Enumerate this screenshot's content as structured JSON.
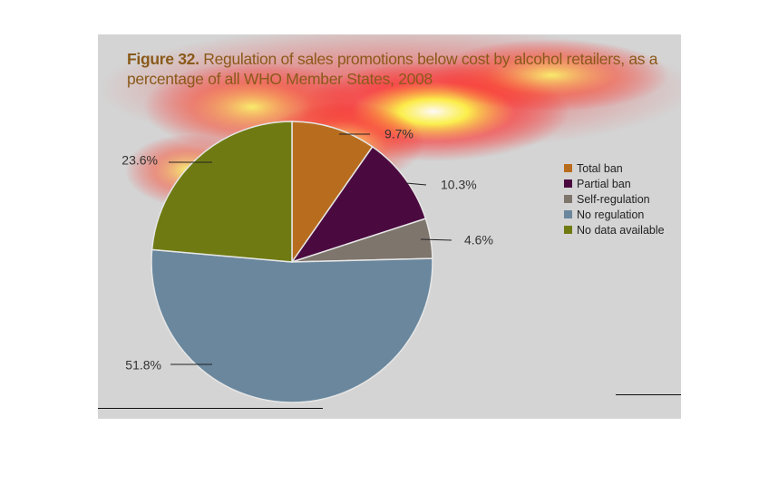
{
  "title": {
    "prefix": "Figure 32.",
    "text": "Regulation of sales promotions below cost by alcohol retailers, as a percentage of all WHO Member States, 2008"
  },
  "chart_data": {
    "type": "pie",
    "slices": [
      {
        "name": "Total ban",
        "value": 9.7,
        "label": "9.7%",
        "color": "#b86d1e"
      },
      {
        "name": "Partial ban",
        "value": 10.3,
        "label": "10.3%",
        "color": "#4b0a3f"
      },
      {
        "name": "Self-regulation",
        "value": 4.6,
        "label": "4.6%",
        "color": "#7e756d"
      },
      {
        "name": "No regulation",
        "value": 51.8,
        "label": "51.8%",
        "color": "#6a879d"
      },
      {
        "name": "No data available",
        "value": 23.6,
        "label": "23.6%",
        "color": "#6f7b12"
      }
    ],
    "legend_position": "right"
  }
}
